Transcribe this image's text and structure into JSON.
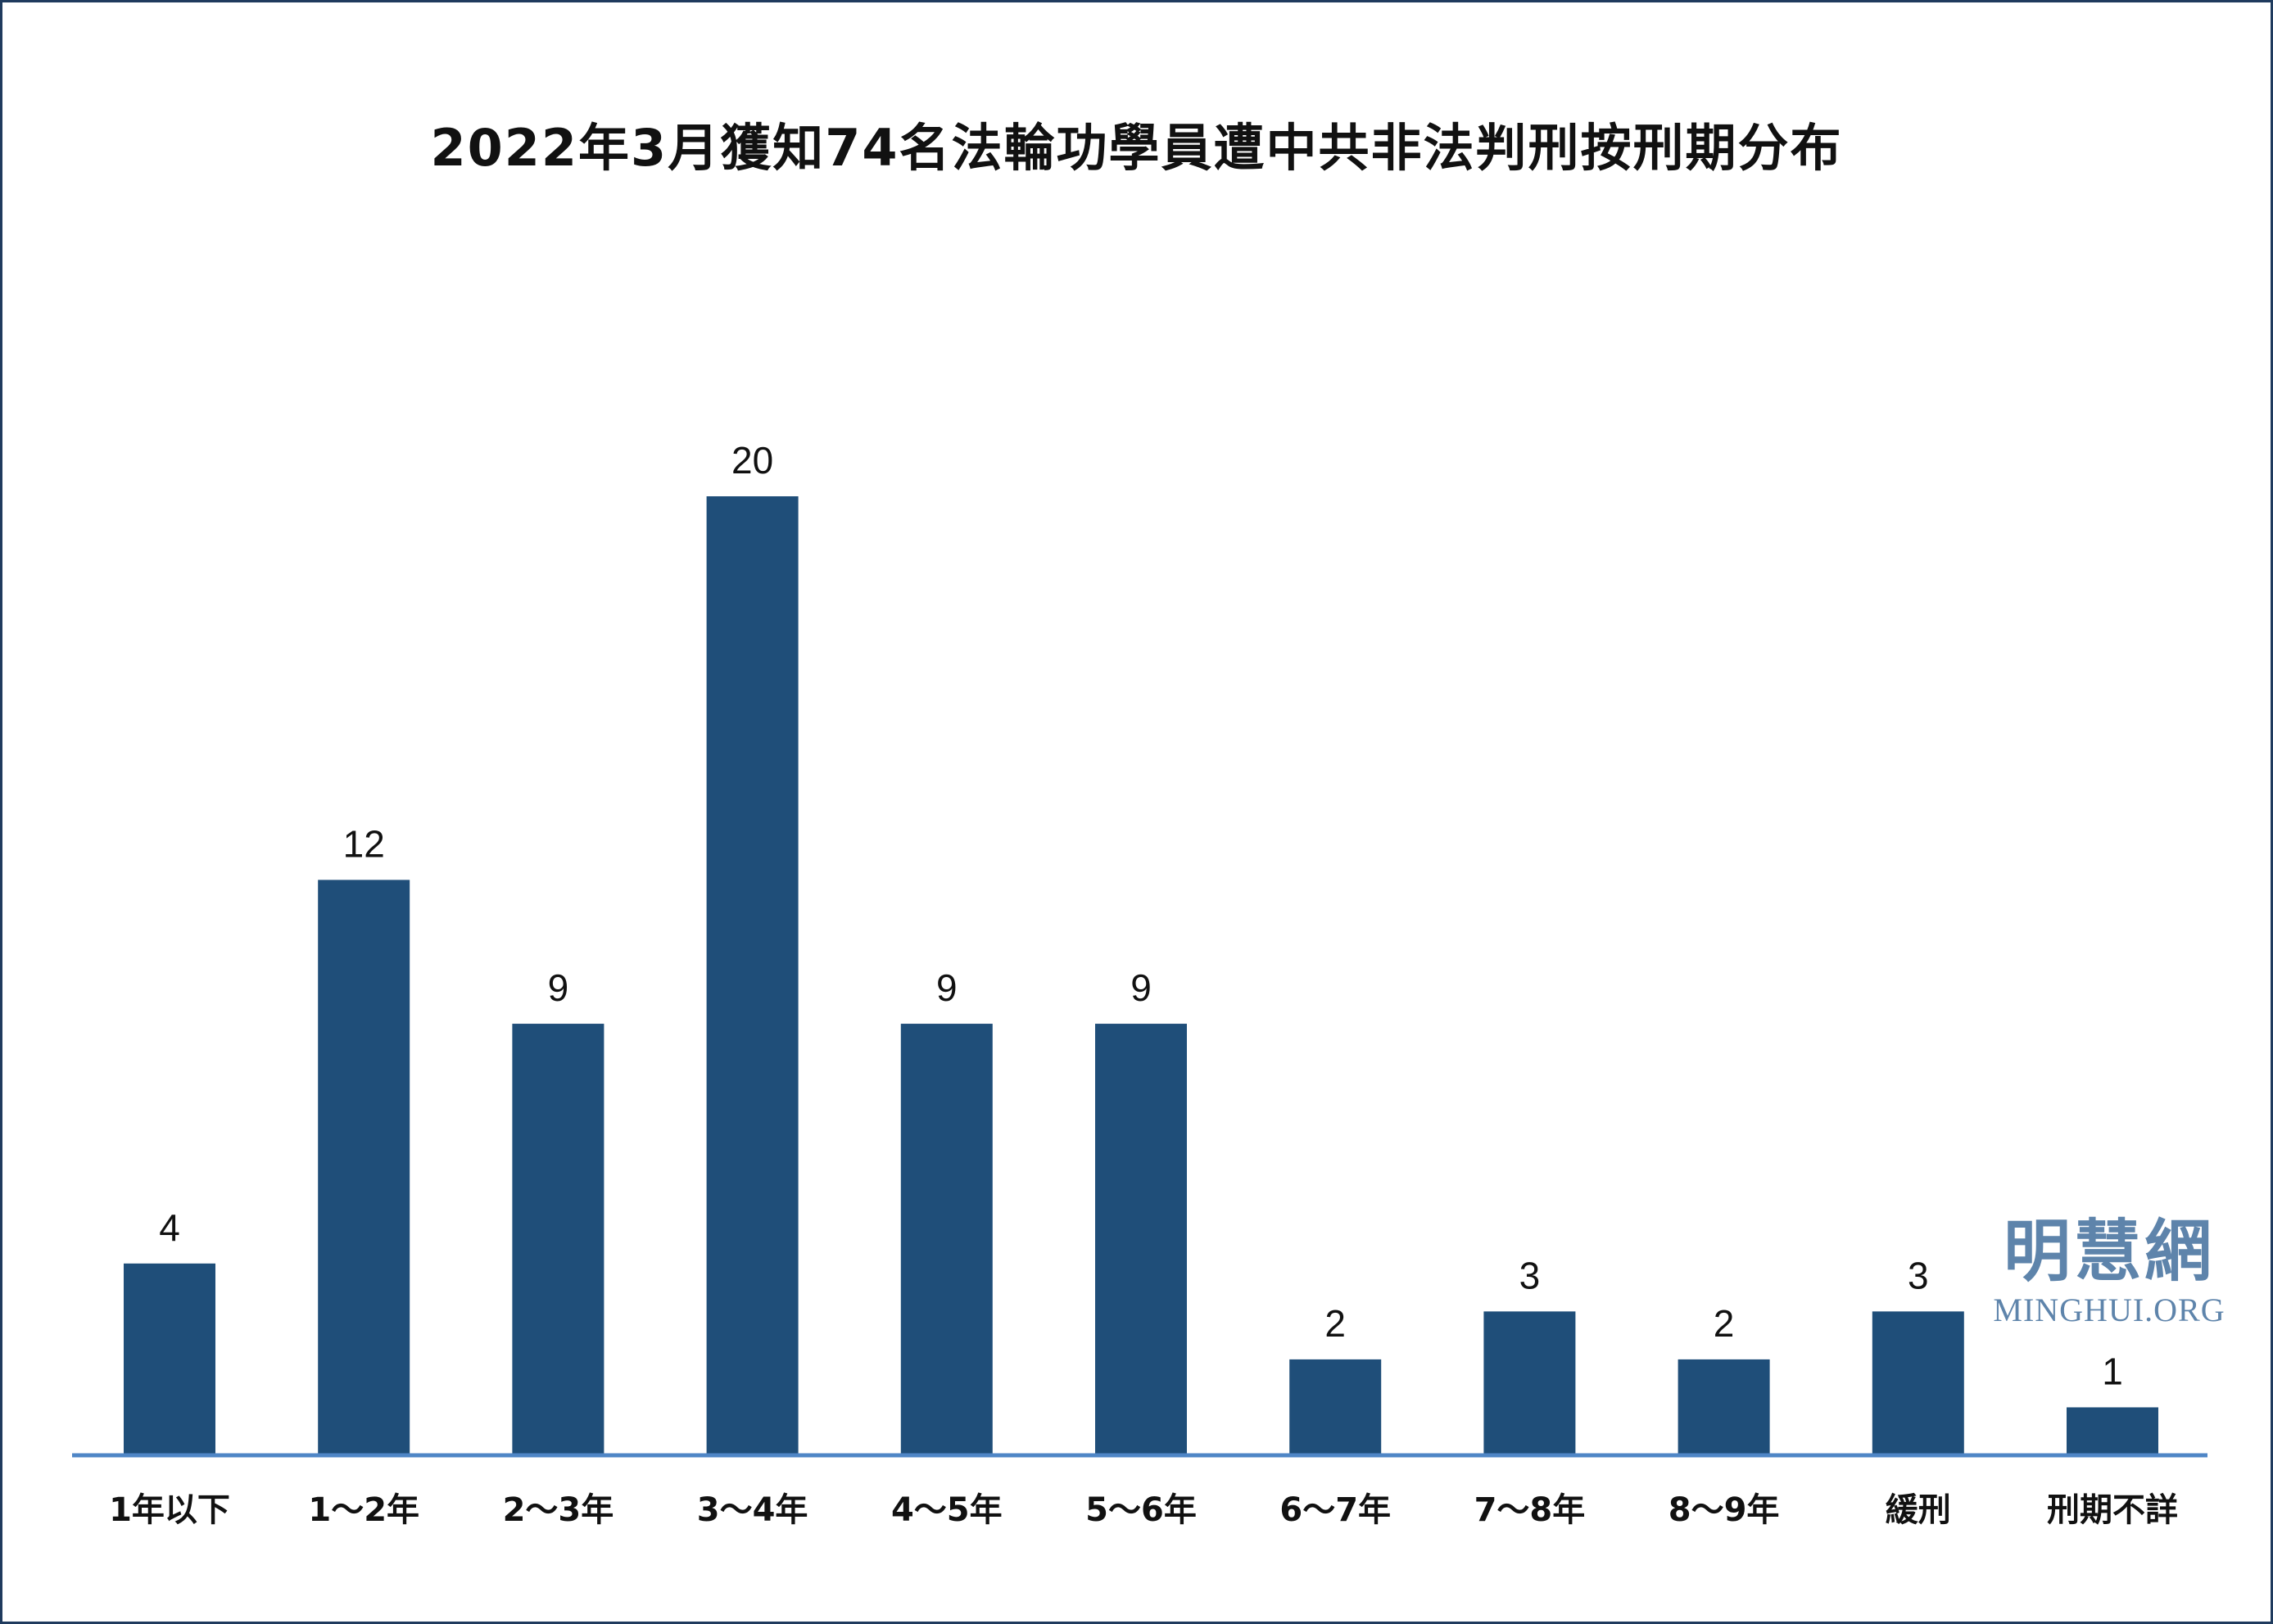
{
  "chart_data": {
    "type": "bar",
    "title": "2022年3月獲知74名法輪功學員遭中共非法判刑按刑期分布",
    "xlabel": "",
    "ylabel": "",
    "categories": [
      "1年以下",
      "1～2年",
      "2～3年",
      "3～4年",
      "4～5年",
      "5～6年",
      "6～7年",
      "7～8年",
      "8～9年",
      "緩刑",
      "刑期不詳"
    ],
    "values": [
      4,
      12,
      9,
      20,
      9,
      9,
      2,
      3,
      2,
      3,
      1
    ],
    "ylim": [
      0,
      20
    ],
    "grid": false,
    "legend": "none",
    "data_labels": true,
    "bar_color": "#1f4e79",
    "axis_color": "#4f86c6"
  },
  "watermark": {
    "chinese": "明慧網",
    "english": "MINGHUI.ORG",
    "color": "#5e84ab"
  }
}
